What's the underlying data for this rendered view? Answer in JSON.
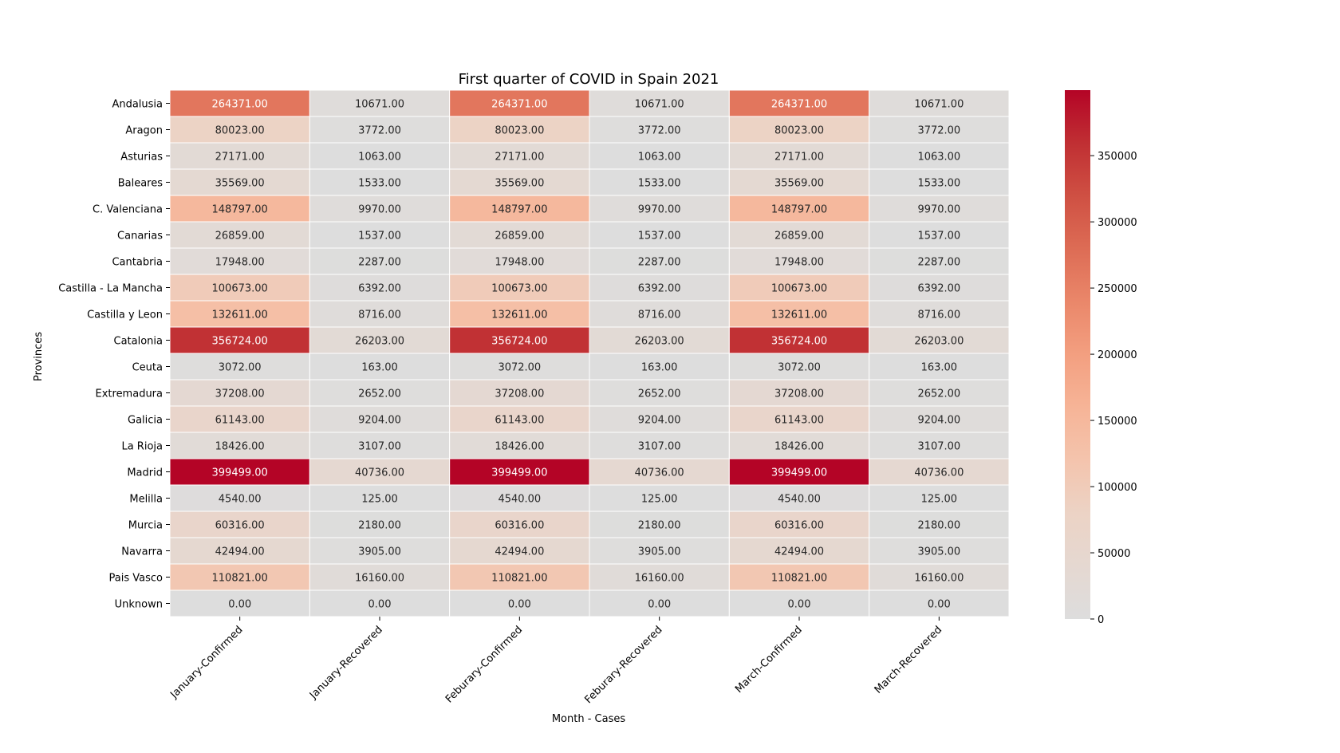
{
  "chart_data": {
    "type": "heatmap",
    "title": "First quarter of COVID in Spain 2021",
    "xlabel": "Month - Cases",
    "ylabel": "Provinces",
    "columns": [
      "January-Confirmed",
      "January-Recovered",
      "Feburary-Confirmed",
      "Feburary-Recovered",
      "March-Confirmed",
      "March-Recovered"
    ],
    "rows": [
      "Andalusia",
      "Aragon",
      "Asturias",
      "Baleares",
      "C. Valenciana",
      "Canarias",
      "Cantabria",
      "Castilla - La Mancha",
      "Castilla y Leon",
      "Catalonia",
      "Ceuta",
      "Extremadura",
      "Galicia",
      "La Rioja",
      "Madrid",
      "Melilla",
      "Murcia",
      "Navarra",
      "Pais Vasco",
      "Unknown"
    ],
    "values": [
      [
        264371,
        10671,
        264371,
        10671,
        264371,
        10671
      ],
      [
        80023,
        3772,
        80023,
        3772,
        80023,
        3772
      ],
      [
        27171,
        1063,
        27171,
        1063,
        27171,
        1063
      ],
      [
        35569,
        1533,
        35569,
        1533,
        35569,
        1533
      ],
      [
        148797,
        9970,
        148797,
        9970,
        148797,
        9970
      ],
      [
        26859,
        1537,
        26859,
        1537,
        26859,
        1537
      ],
      [
        17948,
        2287,
        17948,
        2287,
        17948,
        2287
      ],
      [
        100673,
        6392,
        100673,
        6392,
        100673,
        6392
      ],
      [
        132611,
        8716,
        132611,
        8716,
        132611,
        8716
      ],
      [
        356724,
        26203,
        356724,
        26203,
        356724,
        26203
      ],
      [
        3072,
        163,
        3072,
        163,
        3072,
        163
      ],
      [
        37208,
        2652,
        37208,
        2652,
        37208,
        2652
      ],
      [
        61143,
        9204,
        61143,
        9204,
        61143,
        9204
      ],
      [
        18426,
        3107,
        18426,
        3107,
        18426,
        3107
      ],
      [
        399499,
        40736,
        399499,
        40736,
        399499,
        40736
      ],
      [
        4540,
        125,
        4540,
        125,
        4540,
        125
      ],
      [
        60316,
        2180,
        60316,
        2180,
        60316,
        2180
      ],
      [
        42494,
        3905,
        42494,
        3905,
        42494,
        3905
      ],
      [
        110821,
        16160,
        110821,
        16160,
        110821,
        16160
      ],
      [
        0,
        0,
        0,
        0,
        0,
        0
      ]
    ],
    "value_format": "2 decimals",
    "colormap": "coolwarm (center 0)",
    "colorbar": {
      "min": 0,
      "max": 399499,
      "ticks": [
        0,
        50000,
        100000,
        150000,
        200000,
        250000,
        300000,
        350000
      ]
    },
    "colors": {
      "low": "#dddddd",
      "high": "#b40426",
      "grid_line": "#ffffff",
      "dark_text": "#262626",
      "light_text": "#ffffff"
    }
  }
}
